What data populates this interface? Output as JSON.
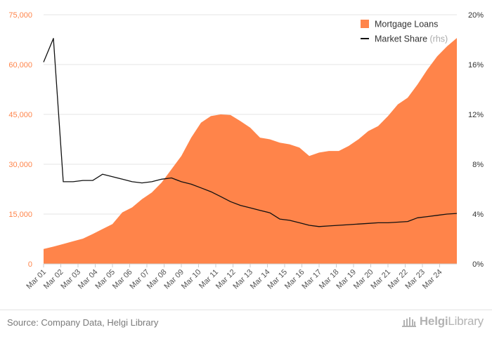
{
  "chart_data": {
    "type": "area+line",
    "series": [
      {
        "name": "Mortgage Loans",
        "type": "area",
        "axis": "left",
        "color": "#ff844a",
        "values": [
          4500,
          5200,
          6000,
          6800,
          7600,
          9000,
          10500,
          12000,
          15500,
          17000,
          19500,
          21500,
          24500,
          28500,
          32500,
          38000,
          42500,
          44500,
          45000,
          44800,
          43000,
          41000,
          38000,
          37500,
          36500,
          36000,
          35000,
          32500,
          33500,
          34000,
          34000,
          35500,
          37500,
          40000,
          41500,
          44500,
          48000,
          50000,
          54000,
          58500,
          62500,
          65500,
          68000
        ]
      },
      {
        "name": "Market Share (rhs)",
        "type": "line",
        "axis": "right",
        "color": "#111111",
        "values": [
          16.2,
          18.1,
          6.6,
          6.6,
          6.7,
          6.7,
          7.2,
          7.0,
          6.8,
          6.6,
          6.5,
          6.6,
          6.8,
          6.9,
          6.6,
          6.4,
          6.1,
          5.8,
          5.4,
          5.0,
          4.7,
          4.5,
          4.3,
          4.1,
          3.6,
          3.5,
          3.3,
          3.1,
          3.0,
          3.05,
          3.1,
          3.15,
          3.2,
          3.25,
          3.3,
          3.3,
          3.35,
          3.4,
          3.7,
          3.8,
          3.9,
          4.0,
          4.05
        ]
      }
    ],
    "x_labels": [
      "Mar 01",
      "Mar 02",
      "Mar 03",
      "Mar 04",
      "Mar 05",
      "Mar 06",
      "Mar 07",
      "Mar 08",
      "Mar 09",
      "Mar 10",
      "Mar 11",
      "Mar 12",
      "Mar 13",
      "Mar 14",
      "Mar 15",
      "Mar 16",
      "Mar 17",
      "Mar 18",
      "Mar 19",
      "Mar 20",
      "Mar 21",
      "Mar 22",
      "Mar 23",
      "Mar 24"
    ],
    "y_left": {
      "ticks": [
        0,
        15000,
        30000,
        45000,
        60000,
        75000
      ],
      "tick_labels": [
        "0",
        "15,000",
        "30,000",
        "45,000",
        "60,000",
        "75,000"
      ],
      "range": [
        0,
        75000
      ],
      "color": "#ff844a"
    },
    "y_right": {
      "ticks": [
        0,
        4,
        8,
        12,
        16,
        20
      ],
      "tick_labels": [
        "0%",
        "4%",
        "8%",
        "12%",
        "16%",
        "20%"
      ],
      "range": [
        0,
        20
      ],
      "color": "#333333"
    },
    "legend": {
      "position": "top-right"
    },
    "grid": true
  },
  "footer": {
    "source": "Source: Company Data, Helgi Library",
    "brand_helgi": "Helgi",
    "brand_library": "Library"
  }
}
